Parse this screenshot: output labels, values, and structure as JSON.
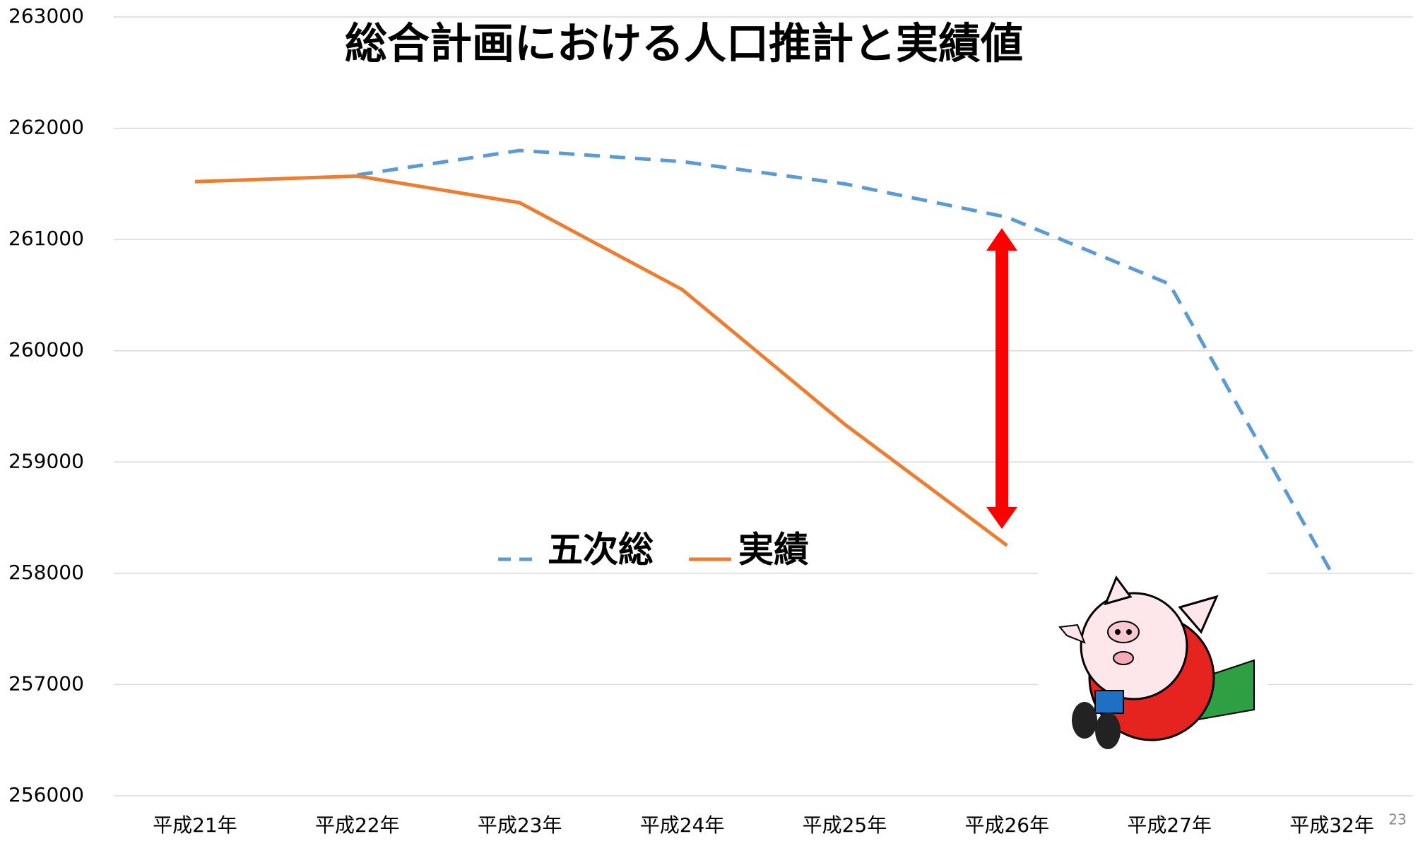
{
  "chart_data": {
    "type": "line",
    "title": "総合計画における人口推計と実績値",
    "categories": [
      "平成21年",
      "平成22年",
      "平成23年",
      "平成24年",
      "平成25年",
      "平成26年",
      "平成27年",
      "平成32年"
    ],
    "series": [
      {
        "name": "五次総",
        "color": "#5b9bd5",
        "dashed": true,
        "values": [
          null,
          261580,
          261800,
          261700,
          261500,
          261200,
          260600,
          258000
        ]
      },
      {
        "name": "実績",
        "color": "#ed7d31",
        "dashed": false,
        "values": [
          261520,
          261570,
          261330,
          260550,
          259340,
          258250,
          null,
          null
        ]
      }
    ],
    "ylim": [
      256000,
      263000
    ],
    "yticks": [
      256000,
      257000,
      258000,
      259000,
      260000,
      261000,
      262000,
      263000
    ],
    "grid": true
  },
  "page_number": "23"
}
